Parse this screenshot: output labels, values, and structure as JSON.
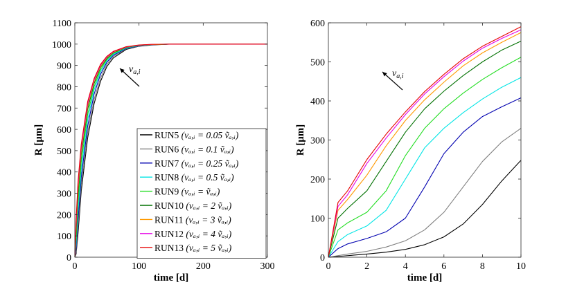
{
  "chart_data": [
    {
      "type": "line",
      "panel": "left",
      "xlabel": "time [d]",
      "ylabel": "R [μm]",
      "xlim": [
        0,
        300
      ],
      "ylim": [
        0,
        1100
      ],
      "xticks": [
        0,
        100,
        200,
        300
      ],
      "yticks": [
        0,
        100,
        200,
        300,
        400,
        500,
        600,
        700,
        800,
        900,
        1000,
        1100
      ],
      "annotation": "v",
      "annotation_sub": "a,i",
      "legend_position": "bottom-right",
      "series": [
        {
          "name": "RUN5",
          "formula": "(v_{a,i} = 0.05 ṽ_{a,i})",
          "color": "#000000",
          "x": [
            0,
            2,
            5,
            10,
            20,
            30,
            40,
            50,
            60,
            80,
            100,
            120,
            150,
            200,
            300
          ],
          "y": [
            0,
            15,
            110,
            310,
            560,
            720,
            825,
            895,
            935,
            975,
            990,
            996,
            1000,
            1000,
            1000
          ]
        },
        {
          "name": "RUN6",
          "formula": "(v_{a,i} = 0.1 ṽ_{a,i})",
          "color": "#808080",
          "x": [
            0,
            2,
            5,
            10,
            20,
            30,
            40,
            50,
            60,
            80,
            100,
            120,
            150,
            200,
            300
          ],
          "y": [
            0,
            25,
            140,
            340,
            585,
            740,
            840,
            905,
            942,
            978,
            991,
            997,
            1000,
            1000,
            1000
          ]
        },
        {
          "name": "RUN7",
          "formula": "(v_{a,i} = 0.25 ṽ_{a,i})",
          "color": "#0000b0",
          "x": [
            0,
            2,
            5,
            10,
            20,
            30,
            40,
            50,
            60,
            80,
            100,
            120,
            150,
            200,
            300
          ],
          "y": [
            0,
            40,
            175,
            375,
            615,
            765,
            858,
            915,
            948,
            980,
            992,
            997,
            1000,
            1000,
            1000
          ]
        },
        {
          "name": "RUN8",
          "formula": "(v_{a,i} = 0.5 ṽ_{a,i})",
          "color": "#00e5e5",
          "x": [
            0,
            2,
            5,
            10,
            20,
            30,
            40,
            50,
            60,
            80,
            100,
            120,
            150,
            200,
            300
          ],
          "y": [
            0,
            60,
            215,
            410,
            645,
            785,
            870,
            922,
            952,
            982,
            993,
            998,
            1000,
            1000,
            1000
          ]
        },
        {
          "name": "RUN9",
          "formula": "(v_{a,i} = ṽ_{a,i})",
          "color": "#22dd22",
          "x": [
            0,
            2,
            5,
            10,
            20,
            30,
            40,
            50,
            60,
            80,
            100,
            120,
            150,
            200,
            300
          ],
          "y": [
            0,
            85,
            255,
            445,
            670,
            800,
            880,
            928,
            956,
            984,
            994,
            998,
            1000,
            1000,
            1000
          ]
        },
        {
          "name": "RUN10",
          "formula": "(v_{a,i} = 2 ṽ_{a,i})",
          "color": "#007000",
          "x": [
            0,
            2,
            5,
            10,
            20,
            30,
            40,
            50,
            60,
            80,
            100,
            120,
            150,
            200,
            300
          ],
          "y": [
            0,
            115,
            295,
            480,
            695,
            815,
            890,
            933,
            960,
            985,
            995,
            998,
            1000,
            1000,
            1000
          ]
        },
        {
          "name": "RUN11",
          "formula": "(v_{a,i} = 3 ṽ_{a,i})",
          "color": "#ff9900",
          "x": [
            0,
            2,
            5,
            10,
            20,
            30,
            40,
            50,
            60,
            80,
            100,
            120,
            150,
            200,
            300
          ],
          "y": [
            0,
            140,
            320,
            500,
            710,
            825,
            895,
            937,
            962,
            986,
            995,
            998,
            1000,
            1000,
            1000
          ]
        },
        {
          "name": "RUN12",
          "formula": "(v_{a,i} = 4 ṽ_{a,i})",
          "color": "#e600e6",
          "x": [
            0,
            2,
            5,
            10,
            20,
            30,
            40,
            50,
            60,
            80,
            100,
            120,
            150,
            200,
            300
          ],
          "y": [
            0,
            160,
            340,
            515,
            720,
            832,
            900,
            940,
            964,
            987,
            995,
            999,
            1000,
            1000,
            1000
          ]
        },
        {
          "name": "RUN13",
          "formula": "(v_{a,i} = 5 ṽ_{a,i})",
          "color": "#e60000",
          "x": [
            0,
            2,
            5,
            10,
            20,
            30,
            40,
            50,
            60,
            80,
            100,
            120,
            150,
            200,
            300
          ],
          "y": [
            0,
            175,
            355,
            530,
            730,
            838,
            905,
            943,
            966,
            988,
            996,
            999,
            1000,
            1000,
            1000
          ]
        }
      ]
    },
    {
      "type": "line",
      "panel": "right",
      "xlabel": "time [d]",
      "ylabel": "R [μm]",
      "xlim": [
        0,
        10
      ],
      "ylim": [
        0,
        600
      ],
      "xticks": [
        0,
        2,
        4,
        6,
        8,
        10
      ],
      "yticks": [
        0,
        100,
        200,
        300,
        400,
        500,
        600
      ],
      "annotation": "v",
      "annotation_sub": "a,i",
      "series": [
        {
          "name": "RUN5",
          "color": "#000000",
          "x": [
            0,
            1,
            2,
            3,
            4,
            5,
            6,
            7,
            8,
            9,
            10
          ],
          "y": [
            0,
            4,
            8,
            13,
            20,
            32,
            52,
            85,
            135,
            195,
            248
          ]
        },
        {
          "name": "RUN6",
          "color": "#808080",
          "x": [
            0,
            1,
            2,
            3,
            4,
            5,
            6,
            7,
            8,
            9,
            10
          ],
          "y": [
            0,
            8,
            15,
            26,
            42,
            70,
            115,
            180,
            245,
            295,
            330
          ]
        },
        {
          "name": "RUN7",
          "color": "#0000b0",
          "x": [
            0,
            0.5,
            1,
            2,
            3,
            4,
            5,
            6,
            7,
            8,
            9,
            10
          ],
          "y": [
            0,
            22,
            34,
            48,
            65,
            100,
            180,
            265,
            320,
            360,
            385,
            408
          ]
        },
        {
          "name": "RUN8",
          "color": "#00e5e5",
          "x": [
            0,
            0.5,
            1,
            2,
            3,
            4,
            5,
            6,
            7,
            8,
            9,
            10
          ],
          "y": [
            0,
            40,
            58,
            80,
            120,
            200,
            280,
            330,
            370,
            405,
            435,
            460
          ]
        },
        {
          "name": "RUN9",
          "color": "#22dd22",
          "x": [
            0,
            0.5,
            1,
            2,
            3,
            4,
            5,
            6,
            7,
            8,
            9,
            10
          ],
          "y": [
            0,
            70,
            88,
            115,
            170,
            260,
            330,
            380,
            420,
            455,
            485,
            512
          ]
        },
        {
          "name": "RUN10",
          "color": "#007000",
          "x": [
            0,
            0.5,
            1,
            2,
            3,
            4,
            5,
            6,
            7,
            8,
            9,
            10
          ],
          "y": [
            0,
            100,
            125,
            170,
            245,
            320,
            380,
            425,
            465,
            500,
            530,
            553
          ]
        },
        {
          "name": "RUN11",
          "color": "#ff9900",
          "x": [
            0,
            0.5,
            1,
            2,
            3,
            4,
            5,
            6,
            7,
            8,
            9,
            10
          ],
          "y": [
            0,
            120,
            148,
            210,
            285,
            350,
            403,
            448,
            490,
            523,
            550,
            575
          ]
        },
        {
          "name": "RUN12",
          "color": "#e600e6",
          "x": [
            0,
            0.5,
            1,
            2,
            3,
            4,
            5,
            6,
            7,
            8,
            9,
            10
          ],
          "y": [
            0,
            130,
            160,
            240,
            305,
            365,
            418,
            462,
            502,
            535,
            560,
            582
          ]
        },
        {
          "name": "RUN13",
          "color": "#e60000",
          "x": [
            0,
            0.5,
            1,
            2,
            3,
            4,
            5,
            6,
            7,
            8,
            9,
            10
          ],
          "y": [
            0,
            140,
            170,
            250,
            315,
            372,
            424,
            468,
            508,
            540,
            565,
            590
          ]
        }
      ]
    }
  ]
}
